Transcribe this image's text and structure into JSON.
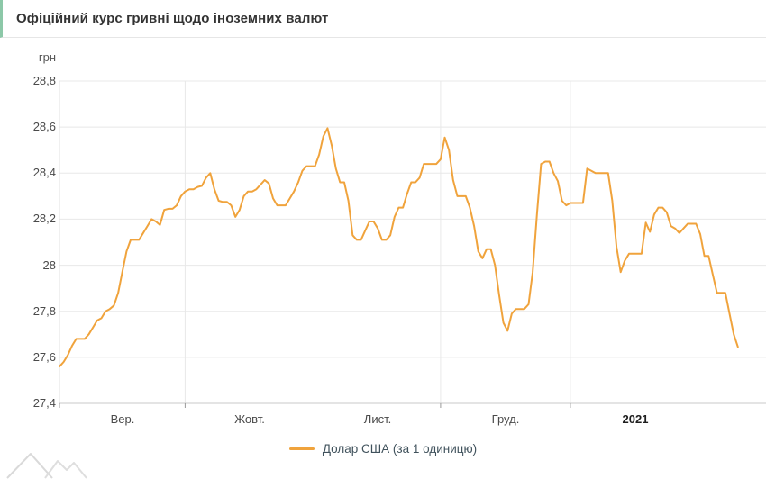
{
  "header": {
    "title": "Офіційний курс гривні щодо іноземних валют",
    "accent_color": "#8cc8a8"
  },
  "chart_data": {
    "type": "line",
    "title": "Офіційний курс гривні щодо іноземних валют",
    "unit_label": "грн",
    "ylabel": "грн",
    "ylim": [
      27.4,
      28.8
    ],
    "grid": true,
    "legend_position": "bottom",
    "y_ticks": [
      {
        "value": 28.8,
        "label": "28,8"
      },
      {
        "value": 28.6,
        "label": "28,6"
      },
      {
        "value": 28.4,
        "label": "28,4"
      },
      {
        "value": 28.2,
        "label": "28,2"
      },
      {
        "value": 28.0,
        "label": "28"
      },
      {
        "value": 27.8,
        "label": "27,8"
      },
      {
        "value": 27.6,
        "label": "27,6"
      },
      {
        "value": 27.4,
        "label": "27,4"
      }
    ],
    "x_months": [
      {
        "label": "Вер.",
        "start_day": 0,
        "end_day": 30,
        "bold": false
      },
      {
        "label": "Жовт.",
        "start_day": 30,
        "end_day": 61,
        "bold": false
      },
      {
        "label": "Лист.",
        "start_day": 61,
        "end_day": 91,
        "bold": false
      },
      {
        "label": "Груд.",
        "start_day": 91,
        "end_day": 122,
        "bold": false
      },
      {
        "label": "2021",
        "start_day": 122,
        "end_day": 153,
        "bold": true
      }
    ],
    "x_start": "Вер. 1",
    "x_total_days": 162,
    "series": [
      {
        "name": "Долар США (за 1 одиницю)",
        "color": "#f0a33c",
        "values": [
          27.56,
          27.58,
          27.61,
          27.65,
          27.68,
          27.68,
          27.68,
          27.7,
          27.73,
          27.76,
          27.77,
          27.8,
          27.81,
          27.825,
          27.88,
          27.97,
          28.06,
          28.11,
          28.11,
          28.11,
          28.14,
          28.17,
          28.2,
          28.19,
          28.175,
          28.24,
          28.245,
          28.245,
          28.26,
          28.3,
          28.32,
          28.33,
          28.33,
          28.34,
          28.345,
          28.38,
          28.4,
          28.33,
          28.28,
          28.275,
          28.275,
          28.26,
          28.21,
          28.24,
          28.3,
          28.32,
          28.32,
          28.33,
          28.35,
          28.37,
          28.355,
          28.29,
          28.26,
          28.26,
          28.26,
          28.29,
          28.32,
          28.36,
          28.41,
          28.43,
          28.43,
          28.43,
          28.48,
          28.56,
          28.595,
          28.52,
          28.42,
          28.36,
          28.36,
          28.28,
          28.13,
          28.11,
          28.11,
          28.15,
          28.19,
          28.19,
          28.16,
          28.11,
          28.11,
          28.13,
          28.21,
          28.25,
          28.25,
          28.31,
          28.36,
          28.36,
          28.38,
          28.44,
          28.44,
          28.44,
          28.44,
          28.46,
          28.555,
          28.5,
          28.37,
          28.3,
          28.3,
          28.3,
          28.25,
          28.17,
          28.06,
          28.03,
          28.07,
          28.07,
          28.0,
          27.87,
          27.75,
          27.715,
          27.79,
          27.81,
          27.81,
          27.81,
          27.83,
          27.97,
          28.22,
          28.44,
          28.45,
          28.45,
          28.4,
          28.365,
          28.28,
          28.26,
          28.27,
          28.27,
          28.27,
          28.27,
          28.42,
          28.41,
          28.4,
          28.4,
          28.4,
          28.4,
          28.28,
          28.08,
          27.97,
          28.02,
          28.05,
          28.05,
          28.05,
          28.05,
          28.185,
          28.145,
          28.22,
          28.25,
          28.25,
          28.23,
          28.17,
          28.16,
          28.14,
          28.16,
          28.18,
          28.18,
          28.18,
          28.135,
          28.04,
          28.04,
          27.96,
          27.88,
          27.88,
          27.88,
          27.79,
          27.7,
          27.645
        ]
      }
    ]
  },
  "legend": {
    "items": [
      {
        "label": "Долар США (за 1 одиницю)"
      }
    ]
  }
}
